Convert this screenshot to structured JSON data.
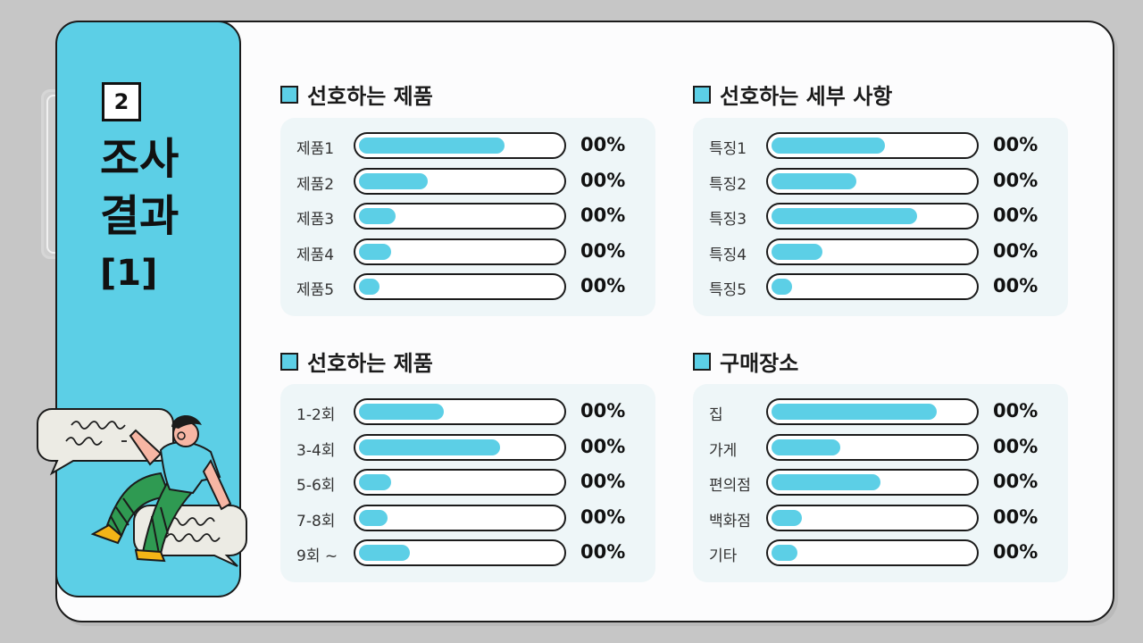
{
  "sidebar": {
    "badge": "2",
    "title_line1": "조사",
    "title_line2": "결과",
    "title_line3": "[1]"
  },
  "colors": {
    "accent": "#5ccfe6",
    "outline": "#1b1b1b",
    "panel": "#eef6f8"
  },
  "sections": [
    {
      "title": "선호하는 제품",
      "rows": [
        {
          "label": "제품1",
          "value": "00%",
          "fill": 0.72
        },
        {
          "label": "제품2",
          "value": "00%",
          "fill": 0.34
        },
        {
          "label": "제품3",
          "value": "00%",
          "fill": 0.18
        },
        {
          "label": "제품4",
          "value": "00%",
          "fill": 0.16
        },
        {
          "label": "제품5",
          "value": "00%",
          "fill": 0.1
        }
      ]
    },
    {
      "title": "선호하는 세부 사항",
      "rows": [
        {
          "label": "특징1",
          "value": "00%",
          "fill": 0.56
        },
        {
          "label": "특징2",
          "value": "00%",
          "fill": 0.42
        },
        {
          "label": "특징3",
          "value": "00%",
          "fill": 0.72
        },
        {
          "label": "특징4",
          "value": "00%",
          "fill": 0.25
        },
        {
          "label": "특징5",
          "value": "00%",
          "fill": 0.1
        }
      ]
    },
    {
      "title": "선호하는 제품",
      "rows": [
        {
          "label": "1-2회",
          "value": "00%",
          "fill": 0.42
        },
        {
          "label": "3-4회",
          "value": "00%",
          "fill": 0.7
        },
        {
          "label": "5-6회",
          "value": "00%",
          "fill": 0.16
        },
        {
          "label": "7-8회",
          "value": "00%",
          "fill": 0.14
        },
        {
          "label": "9회 ~",
          "value": "00%",
          "fill": 0.25
        }
      ]
    },
    {
      "title": "구매장소",
      "rows": [
        {
          "label": "집",
          "value": "00%",
          "fill": 0.82
        },
        {
          "label": "가게",
          "value": "00%",
          "fill": 0.34
        },
        {
          "label": "편의점",
          "value": "00%",
          "fill": 0.54
        },
        {
          "label": "백화점",
          "value": "00%",
          "fill": 0.15
        },
        {
          "label": "기타",
          "value": "00%",
          "fill": 0.13
        }
      ]
    }
  ]
}
